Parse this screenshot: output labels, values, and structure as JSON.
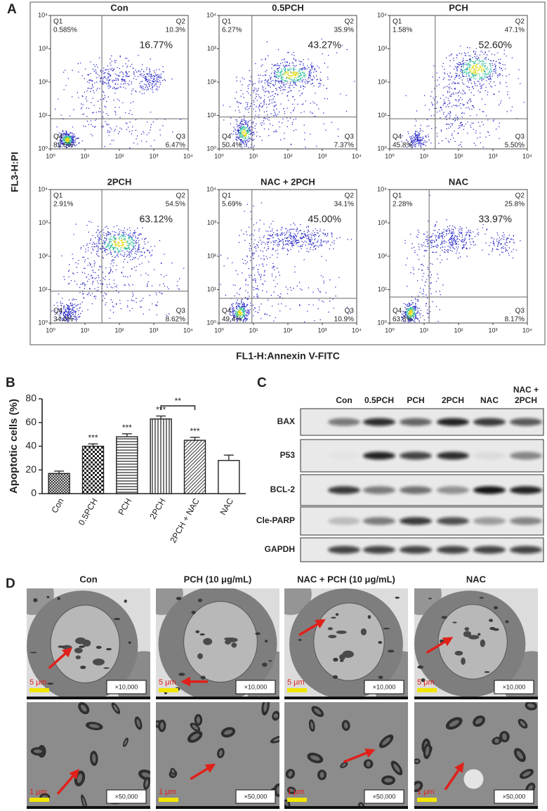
{
  "chart_data": [
    {
      "type": "flow",
      "title": "Con",
      "quadrants": [
        "Q1",
        "Q2",
        "Q3",
        "Q4"
      ],
      "values": [
        0.585,
        10.3,
        6.47,
        82.6
      ],
      "value_labels": [
        "0.585%",
        "10.3%",
        "6.47%",
        "82.6%"
      ],
      "annotation": {
        "value": 16.77,
        "label": "16.77%"
      },
      "quadrant_gate": [
        31,
        8
      ],
      "log_scale": true,
      "xlim": [
        1,
        10000
      ],
      "ylim": [
        1,
        10000
      ],
      "xticks": [
        {
          "value": 1,
          "label": "10⁰"
        },
        {
          "value": 10,
          "label": "10¹"
        },
        {
          "value": 100,
          "label": "10²"
        },
        {
          "value": 1000,
          "label": "10³"
        },
        {
          "value": 10000,
          "label": "10⁴"
        }
      ],
      "yticks": [
        {
          "value": 1,
          "label": "10⁰"
        },
        {
          "value": 10,
          "label": "10¹"
        },
        {
          "value": 100,
          "label": "10²"
        },
        {
          "value": 1000,
          "label": "10³"
        },
        {
          "value": 10000,
          "label": "10⁴"
        }
      ]
    },
    {
      "type": "flow",
      "title": "0.5PCH",
      "quadrants": [
        "Q1",
        "Q2",
        "Q3",
        "Q4"
      ],
      "values": [
        6.27,
        35.9,
        7.37,
        50.4
      ],
      "value_labels": [
        "6.27%",
        "35.9%",
        "7.37%",
        "50.4%"
      ],
      "annotation": {
        "value": 43.27,
        "label": "43.27%"
      },
      "quadrant_gate": [
        9,
        9
      ],
      "log_scale": true,
      "xlim": [
        1,
        10000
      ],
      "ylim": [
        1,
        10000
      ],
      "xticks": [
        {
          "value": 1,
          "label": "10⁰"
        },
        {
          "value": 10,
          "label": "10¹"
        },
        {
          "value": 100,
          "label": "10²"
        },
        {
          "value": 1000,
          "label": "10³"
        },
        {
          "value": 10000,
          "label": "10⁴"
        }
      ],
      "yticks": [
        {
          "value": 1,
          "label": "10⁰"
        },
        {
          "value": 10,
          "label": "10¹"
        },
        {
          "value": 100,
          "label": "10²"
        },
        {
          "value": 1000,
          "label": "10³"
        },
        {
          "value": 10000,
          "label": "10⁴"
        }
      ]
    },
    {
      "type": "flow",
      "title": "PCH",
      "quadrants": [
        "Q1",
        "Q2",
        "Q3",
        "Q4"
      ],
      "values": [
        1.58,
        47.1,
        5.5,
        45.8
      ],
      "value_labels": [
        "1.58%",
        "47.1%",
        "5.50%",
        "45.8%"
      ],
      "annotation": {
        "value": 52.6,
        "label": "52.60%"
      },
      "quadrant_gate": [
        21,
        8
      ],
      "log_scale": true,
      "xlim": [
        1,
        10000
      ],
      "ylim": [
        1,
        10000
      ],
      "xticks": [
        {
          "value": 1,
          "label": "10⁰"
        },
        {
          "value": 10,
          "label": "10¹"
        },
        {
          "value": 100,
          "label": "10²"
        },
        {
          "value": 1000,
          "label": "10³"
        },
        {
          "value": 10000,
          "label": "10⁴"
        }
      ],
      "yticks": [
        {
          "value": 1,
          "label": "10⁰"
        },
        {
          "value": 10,
          "label": "10¹"
        },
        {
          "value": 100,
          "label": "10²"
        },
        {
          "value": 1000,
          "label": "10³"
        },
        {
          "value": 10000,
          "label": "10⁴"
        }
      ]
    },
    {
      "type": "flow",
      "title": "2PCH",
      "quadrants": [
        "Q1",
        "Q2",
        "Q3",
        "Q4"
      ],
      "values": [
        2.91,
        54.5,
        8.62,
        34
      ],
      "value_labels": [
        "2.91%",
        "54.5%",
        "8.62%",
        "34.0%"
      ],
      "annotation": {
        "value": 63.12,
        "label": "63.12%"
      },
      "quadrant_gate": [
        31,
        9
      ],
      "log_scale": true,
      "xlim": [
        1,
        10000
      ],
      "ylim": [
        1,
        10000
      ],
      "xticks": [
        {
          "value": 1,
          "label": "10⁰"
        },
        {
          "value": 10,
          "label": "10¹"
        },
        {
          "value": 100,
          "label": "10²"
        },
        {
          "value": 1000,
          "label": "10³"
        },
        {
          "value": 10000,
          "label": "10⁴"
        }
      ],
      "yticks": [
        {
          "value": 1,
          "label": "10⁰"
        },
        {
          "value": 10,
          "label": "10¹"
        },
        {
          "value": 100,
          "label": "10²"
        },
        {
          "value": 1000,
          "label": "10³"
        },
        {
          "value": 10000,
          "label": "10⁴"
        }
      ]
    },
    {
      "type": "flow",
      "title": "NAC + 2PCH",
      "quadrants": [
        "Q1",
        "Q2",
        "Q3",
        "Q4"
      ],
      "values": [
        5.69,
        34.1,
        10.9,
        49.4
      ],
      "value_labels": [
        "5.69%",
        "34.1%",
        "10.9%",
        "49.4%"
      ],
      "annotation": {
        "value": 45,
        "label": "45.00%"
      },
      "quadrant_gate": [
        9,
        5.5
      ],
      "log_scale": true,
      "xlim": [
        1,
        10000
      ],
      "ylim": [
        1,
        10000
      ],
      "xticks": [
        {
          "value": 1,
          "label": "10⁰"
        },
        {
          "value": 10,
          "label": "10¹"
        },
        {
          "value": 100,
          "label": "10²"
        },
        {
          "value": 1000,
          "label": "10³"
        },
        {
          "value": 10000,
          "label": "10⁴"
        }
      ],
      "yticks": [
        {
          "value": 1,
          "label": "10⁰"
        },
        {
          "value": 10,
          "label": "10¹"
        },
        {
          "value": 100,
          "label": "10²"
        },
        {
          "value": 1000,
          "label": "10³"
        },
        {
          "value": 10000,
          "label": "10⁴"
        }
      ]
    },
    {
      "type": "flow",
      "title": "NAC",
      "quadrants": [
        "Q1",
        "Q2",
        "Q3",
        "Q4"
      ],
      "values": [
        2.28,
        25.8,
        8.17,
        63.8
      ],
      "value_labels": [
        "2.28%",
        "25.8%",
        "8.17%",
        "63.8%"
      ],
      "annotation": {
        "value": 33.97,
        "label": "33.97%"
      },
      "quadrant_gate": [
        14,
        6
      ],
      "log_scale": true,
      "xlim": [
        1,
        10000
      ],
      "ylim": [
        1,
        10000
      ],
      "xticks": [
        {
          "value": 1,
          "label": "10⁰"
        },
        {
          "value": 10,
          "label": "10¹"
        },
        {
          "value": 100,
          "label": "10²"
        },
        {
          "value": 1000,
          "label": "10³"
        },
        {
          "value": 10000,
          "label": "10⁴"
        }
      ],
      "yticks": [
        {
          "value": 1,
          "label": "10⁰"
        },
        {
          "value": 10,
          "label": "10¹"
        },
        {
          "value": 100,
          "label": "10²"
        },
        {
          "value": 1000,
          "label": "10³"
        },
        {
          "value": 10000,
          "label": "10⁴"
        }
      ]
    },
    {
      "type": "bar",
      "y_label": "Apoptotic cells (%)",
      "categories": [
        "Con",
        "0.5PCH",
        "PCH",
        "2PCH",
        "2PCH + NAC",
        "NAC"
      ],
      "values": [
        17,
        40,
        48,
        63,
        45,
        28
      ],
      "errors": [
        2,
        2,
        2.5,
        2.5,
        2.5,
        4.5
      ],
      "significance": [
        null,
        "***",
        "***",
        "***",
        "***",
        null
      ],
      "comparison": {
        "categories": [
          "2PCH",
          "2PCH + NAC"
        ],
        "label": "**"
      },
      "fills": [
        "crosshatch",
        "checker",
        "horizontal",
        "vertical",
        "diagonal",
        "none"
      ],
      "color": "#222222",
      "ylim": [
        0,
        80
      ],
      "yticks": [
        0,
        20,
        40,
        60,
        80
      ]
    }
  ],
  "panel_labels": [
    "A",
    "B",
    "C",
    "D"
  ],
  "panel_a": {
    "y_label": "FL3-H:PI",
    "x_label": "FL1-H:Annexin V-FITC"
  },
  "blot": {
    "lanes": [
      "Con",
      "0.5PCH",
      "PCH",
      "2PCH",
      "NAC",
      "NAC + 2PCH"
    ],
    "proteins": [
      "BAX",
      "P53",
      "BCL-2",
      "Cle-PARP",
      "GAPDH"
    ]
  },
  "panel_d": {
    "columns": [
      "Con",
      "PCH (10 μg/mL)",
      "NAC + PCH (10 μg/mL)",
      "NAC"
    ],
    "rows": [
      {
        "scale_bar": "5 μm",
        "magnification": "×10,000"
      },
      {
        "scale_bar": "1 μm",
        "magnification": "×50,000"
      }
    ]
  }
}
